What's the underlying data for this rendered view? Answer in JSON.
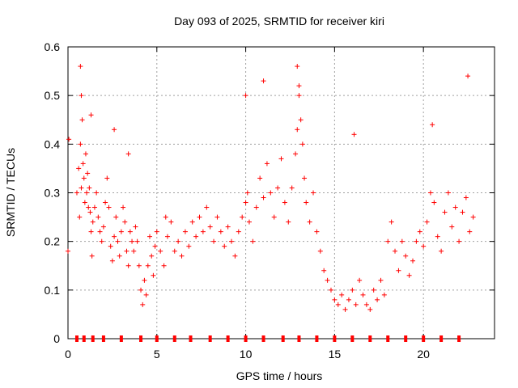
{
  "chart_data": {
    "type": "scatter",
    "title": "Day 093 of 2025, SRMTID for receiver kiri",
    "xlabel": "GPS time / hours",
    "ylabel": "SRMTID / TECUs",
    "xlim": [
      0,
      24
    ],
    "ylim": [
      0,
      0.6
    ],
    "xticks": [
      0,
      5,
      10,
      15,
      20
    ],
    "yticks": [
      0,
      0.1,
      0.2,
      0.3,
      0.4,
      0.5,
      0.6
    ],
    "grid": true,
    "marker": "+",
    "color": "#ff0000",
    "series": [
      {
        "name": "SRMTID",
        "x": [
          0.0,
          0.05,
          0.5,
          0.6,
          0.65,
          0.7,
          0.75,
          0.8,
          0.85,
          0.9,
          0.95,
          1.0,
          1.05,
          1.1,
          1.15,
          1.2,
          1.25,
          1.3,
          1.35,
          1.4,
          1.5,
          1.6,
          1.7,
          1.8,
          1.9,
          2.0,
          2.1,
          2.2,
          2.3,
          2.4,
          2.5,
          2.6,
          2.7,
          2.8,
          2.9,
          3.0,
          3.1,
          3.2,
          3.3,
          3.4,
          3.5,
          3.6,
          3.7,
          3.8,
          3.9,
          4.0,
          4.1,
          4.2,
          4.3,
          4.4,
          4.5,
          4.6,
          4.7,
          4.8,
          4.9,
          5.0,
          5.2,
          5.4,
          5.6,
          5.8,
          6.0,
          6.2,
          6.4,
          6.6,
          6.8,
          7.0,
          7.2,
          7.4,
          7.6,
          7.8,
          8.0,
          8.2,
          8.4,
          8.6,
          8.8,
          9.0,
          9.2,
          9.4,
          9.6,
          9.8,
          10.0,
          10.1,
          10.2,
          10.4,
          10.6,
          10.8,
          11.0,
          11.2,
          11.4,
          11.6,
          11.8,
          12.0,
          12.2,
          12.4,
          12.6,
          12.8,
          12.9,
          13.0,
          13.1,
          13.2,
          13.3,
          13.4,
          13.6,
          13.8,
          14.0,
          14.2,
          14.4,
          14.6,
          14.8,
          15.0,
          15.2,
          15.4,
          15.6,
          15.8,
          16.0,
          16.2,
          16.4,
          16.6,
          16.8,
          17.0,
          17.2,
          17.4,
          17.6,
          17.8,
          18.0,
          18.2,
          18.4,
          18.6,
          18.8,
          19.0,
          19.2,
          19.4,
          19.6,
          19.8,
          20.0,
          20.2,
          20.4,
          20.6,
          20.8,
          21.0,
          21.2,
          21.4,
          21.6,
          21.8,
          22.0,
          22.2,
          22.4,
          22.6,
          22.8,
          0.7,
          0.75,
          1.3,
          2.6,
          3.4,
          5.5,
          10.0,
          11.0,
          12.9,
          13.0,
          16.1,
          20.5,
          22.5
        ],
        "y": [
          0.18,
          0.41,
          0.3,
          0.35,
          0.25,
          0.4,
          0.31,
          0.45,
          0.36,
          0.33,
          0.28,
          0.38,
          0.3,
          0.34,
          0.27,
          0.31,
          0.26,
          0.22,
          0.17,
          0.24,
          0.27,
          0.3,
          0.25,
          0.22,
          0.2,
          0.23,
          0.28,
          0.33,
          0.27,
          0.19,
          0.16,
          0.21,
          0.25,
          0.2,
          0.17,
          0.22,
          0.27,
          0.24,
          0.18,
          0.15,
          0.22,
          0.2,
          0.18,
          0.23,
          0.2,
          0.15,
          0.1,
          0.07,
          0.12,
          0.09,
          0.15,
          0.21,
          0.17,
          0.13,
          0.19,
          0.22,
          0.18,
          0.15,
          0.21,
          0.24,
          0.18,
          0.2,
          0.17,
          0.22,
          0.19,
          0.24,
          0.21,
          0.25,
          0.22,
          0.27,
          0.23,
          0.2,
          0.25,
          0.22,
          0.19,
          0.23,
          0.2,
          0.17,
          0.22,
          0.25,
          0.28,
          0.3,
          0.24,
          0.2,
          0.27,
          0.33,
          0.29,
          0.36,
          0.3,
          0.25,
          0.31,
          0.37,
          0.28,
          0.24,
          0.31,
          0.38,
          0.43,
          0.5,
          0.45,
          0.4,
          0.33,
          0.28,
          0.24,
          0.3,
          0.22,
          0.18,
          0.14,
          0.12,
          0.1,
          0.08,
          0.07,
          0.09,
          0.06,
          0.08,
          0.1,
          0.07,
          0.12,
          0.09,
          0.07,
          0.06,
          0.1,
          0.08,
          0.12,
          0.09,
          0.2,
          0.24,
          0.18,
          0.14,
          0.2,
          0.17,
          0.13,
          0.16,
          0.2,
          0.22,
          0.19,
          0.24,
          0.3,
          0.28,
          0.21,
          0.18,
          0.26,
          0.3,
          0.23,
          0.27,
          0.2,
          0.26,
          0.29,
          0.22,
          0.25,
          0.56,
          0.5,
          0.46,
          0.43,
          0.38,
          0.25,
          0.5,
          0.53,
          0.56,
          0.52,
          0.42,
          0.44,
          0.54
        ]
      }
    ],
    "bottom_markers_x": [
      0.5,
      0.9,
      1.4,
      2.0,
      3.0,
      4.1,
      5.0,
      6.0,
      6.9,
      8.0,
      9.0,
      10.0,
      11.0,
      12.1,
      13.0,
      14.0,
      15.0,
      16.0,
      17.0,
      18.0,
      19.0,
      20.0,
      21.0,
      22.0
    ]
  }
}
